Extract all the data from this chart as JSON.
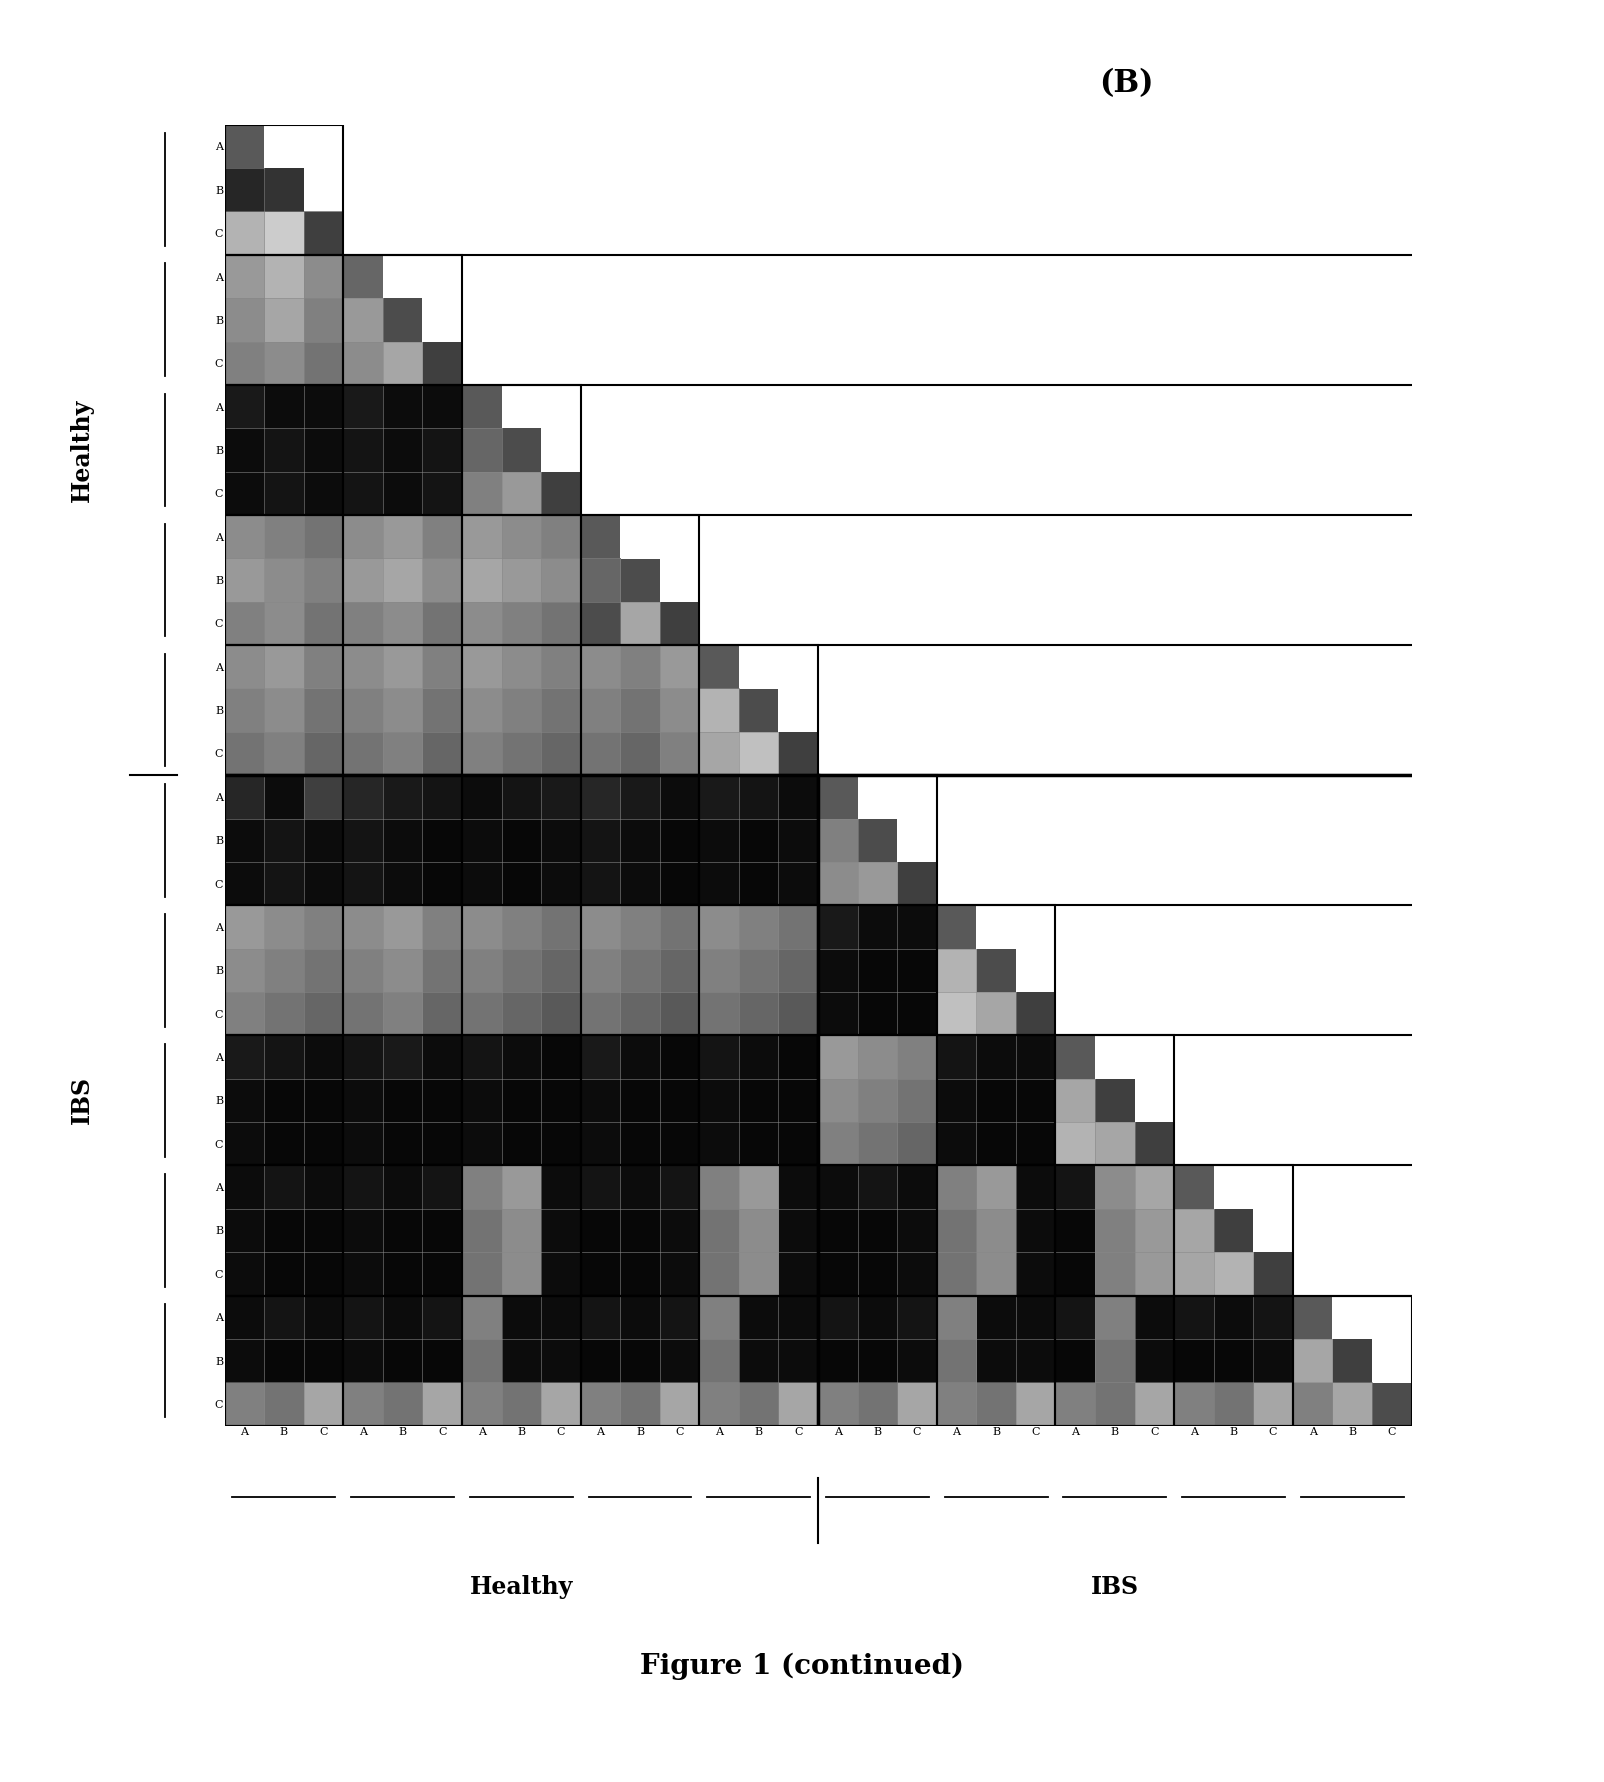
{
  "title": "(B)",
  "figure_caption": "Figure 1 (continued)",
  "n_groups": 10,
  "n_per_group": 3,
  "total": 30,
  "healthy_count": 5,
  "ibs_count": 5,
  "group_labels": [
    "A",
    "B",
    "C",
    "A",
    "B",
    "C",
    "A",
    "B",
    "C",
    "A",
    "B",
    "C",
    "A",
    "B",
    "C",
    "A",
    "B",
    "C",
    "A",
    "B",
    "C",
    "A",
    "B",
    "C",
    "A",
    "B",
    "C",
    "A",
    "B",
    "C"
  ],
  "background_color": "#ffffff",
  "ylabel_healthy": "Healthy",
  "ylabel_ibs": "IBS",
  "xlabel_healthy": "Healthy",
  "xlabel_ibs": "IBS",
  "cell_data": [
    [
      0.35,
      0.9,
      0.7,
      1.0,
      1.0,
      1.0,
      1.0,
      1.0,
      1.0,
      1.0,
      1.0,
      1.0,
      1.0,
      1.0,
      1.0,
      1.0,
      1.0,
      1.0,
      1.0,
      1.0,
      1.0,
      1.0,
      1.0,
      1.0,
      1.0,
      1.0,
      1.0,
      1.0,
      1.0,
      1.0
    ],
    [
      0.15,
      0.2,
      0.55,
      1.0,
      1.0,
      1.0,
      1.0,
      1.0,
      1.0,
      1.0,
      1.0,
      1.0,
      1.0,
      1.0,
      1.0,
      1.0,
      1.0,
      1.0,
      1.0,
      1.0,
      1.0,
      1.0,
      1.0,
      1.0,
      1.0,
      1.0,
      1.0,
      1.0,
      1.0,
      1.0
    ],
    [
      0.7,
      0.8,
      0.25,
      1.0,
      1.0,
      1.0,
      1.0,
      1.0,
      1.0,
      1.0,
      1.0,
      1.0,
      1.0,
      1.0,
      1.0,
      1.0,
      1.0,
      1.0,
      1.0,
      1.0,
      1.0,
      1.0,
      1.0,
      1.0,
      1.0,
      1.0,
      1.0,
      1.0,
      1.0,
      1.0
    ],
    [
      0.6,
      0.7,
      0.55,
      0.4,
      0.75,
      1.0,
      1.0,
      1.0,
      1.0,
      1.0,
      1.0,
      1.0,
      1.0,
      1.0,
      1.0,
      1.0,
      1.0,
      1.0,
      1.0,
      1.0,
      1.0,
      1.0,
      1.0,
      1.0,
      1.0,
      1.0,
      1.0,
      1.0,
      1.0,
      1.0
    ],
    [
      0.55,
      0.65,
      0.5,
      0.6,
      0.3,
      1.0,
      1.0,
      1.0,
      1.0,
      1.0,
      1.0,
      1.0,
      1.0,
      1.0,
      1.0,
      1.0,
      1.0,
      1.0,
      1.0,
      1.0,
      1.0,
      1.0,
      1.0,
      1.0,
      1.0,
      1.0,
      1.0,
      1.0,
      1.0,
      1.0
    ],
    [
      0.5,
      0.55,
      0.45,
      0.55,
      0.65,
      0.25,
      1.0,
      1.0,
      1.0,
      1.0,
      1.0,
      1.0,
      1.0,
      1.0,
      1.0,
      1.0,
      1.0,
      1.0,
      1.0,
      1.0,
      1.0,
      1.0,
      1.0,
      1.0,
      1.0,
      1.0,
      1.0,
      1.0,
      1.0,
      1.0
    ],
    [
      0.1,
      0.05,
      0.05,
      0.1,
      0.05,
      0.05,
      0.35,
      0.85,
      1.0,
      1.0,
      1.0,
      1.0,
      1.0,
      1.0,
      1.0,
      1.0,
      1.0,
      1.0,
      1.0,
      1.0,
      1.0,
      1.0,
      1.0,
      1.0,
      1.0,
      1.0,
      1.0,
      1.0,
      1.0,
      1.0
    ],
    [
      0.05,
      0.08,
      0.05,
      0.08,
      0.05,
      0.08,
      0.4,
      0.3,
      1.0,
      1.0,
      1.0,
      1.0,
      1.0,
      1.0,
      1.0,
      1.0,
      1.0,
      1.0,
      1.0,
      1.0,
      1.0,
      1.0,
      1.0,
      1.0,
      1.0,
      1.0,
      1.0,
      1.0,
      1.0,
      1.0
    ],
    [
      0.05,
      0.08,
      0.05,
      0.08,
      0.05,
      0.08,
      0.5,
      0.6,
      0.25,
      1.0,
      1.0,
      1.0,
      1.0,
      1.0,
      1.0,
      1.0,
      1.0,
      1.0,
      1.0,
      1.0,
      1.0,
      1.0,
      1.0,
      1.0,
      1.0,
      1.0,
      1.0,
      1.0,
      1.0,
      1.0
    ],
    [
      0.55,
      0.5,
      0.45,
      0.55,
      0.6,
      0.5,
      0.6,
      0.55,
      0.5,
      0.35,
      1.0,
      1.0,
      1.0,
      1.0,
      1.0,
      1.0,
      1.0,
      1.0,
      1.0,
      1.0,
      1.0,
      1.0,
      1.0,
      1.0,
      1.0,
      1.0,
      1.0,
      1.0,
      1.0,
      1.0
    ],
    [
      0.6,
      0.55,
      0.5,
      0.6,
      0.65,
      0.55,
      0.65,
      0.6,
      0.55,
      0.4,
      0.3,
      1.0,
      1.0,
      1.0,
      1.0,
      1.0,
      1.0,
      1.0,
      1.0,
      1.0,
      1.0,
      1.0,
      1.0,
      1.0,
      1.0,
      1.0,
      1.0,
      1.0,
      1.0,
      1.0
    ],
    [
      0.5,
      0.55,
      0.45,
      0.5,
      0.55,
      0.45,
      0.55,
      0.5,
      0.45,
      0.3,
      0.65,
      0.25,
      1.0,
      1.0,
      1.0,
      1.0,
      1.0,
      1.0,
      1.0,
      1.0,
      1.0,
      1.0,
      1.0,
      1.0,
      1.0,
      1.0,
      1.0,
      1.0,
      1.0,
      1.0
    ],
    [
      0.55,
      0.6,
      0.5,
      0.55,
      0.6,
      0.5,
      0.6,
      0.55,
      0.5,
      0.55,
      0.5,
      0.6,
      0.35,
      1.0,
      1.0,
      1.0,
      1.0,
      1.0,
      1.0,
      1.0,
      1.0,
      1.0,
      1.0,
      1.0,
      1.0,
      1.0,
      1.0,
      1.0,
      1.0,
      1.0
    ],
    [
      0.5,
      0.55,
      0.45,
      0.5,
      0.55,
      0.45,
      0.55,
      0.5,
      0.45,
      0.5,
      0.45,
      0.55,
      0.7,
      0.3,
      1.0,
      1.0,
      1.0,
      1.0,
      1.0,
      1.0,
      1.0,
      1.0,
      1.0,
      1.0,
      1.0,
      1.0,
      1.0,
      1.0,
      1.0,
      1.0
    ],
    [
      0.45,
      0.5,
      0.4,
      0.45,
      0.5,
      0.4,
      0.5,
      0.45,
      0.4,
      0.45,
      0.4,
      0.5,
      0.65,
      0.75,
      0.25,
      1.0,
      1.0,
      1.0,
      1.0,
      1.0,
      1.0,
      1.0,
      1.0,
      1.0,
      1.0,
      1.0,
      1.0,
      1.0,
      1.0,
      1.0
    ],
    [
      0.15,
      0.05,
      0.25,
      0.15,
      0.1,
      0.08,
      0.05,
      0.08,
      0.1,
      0.15,
      0.1,
      0.05,
      0.1,
      0.08,
      0.05,
      0.35,
      0.8,
      1.0,
      1.0,
      1.0,
      1.0,
      1.0,
      1.0,
      1.0,
      1.0,
      1.0,
      1.0,
      1.0,
      1.0,
      1.0
    ],
    [
      0.05,
      0.08,
      0.05,
      0.08,
      0.05,
      0.03,
      0.05,
      0.03,
      0.05,
      0.08,
      0.05,
      0.03,
      0.05,
      0.03,
      0.05,
      0.5,
      0.3,
      1.0,
      1.0,
      1.0,
      1.0,
      1.0,
      1.0,
      1.0,
      1.0,
      1.0,
      1.0,
      1.0,
      1.0,
      1.0
    ],
    [
      0.05,
      0.08,
      0.05,
      0.08,
      0.05,
      0.03,
      0.05,
      0.03,
      0.05,
      0.08,
      0.05,
      0.03,
      0.05,
      0.03,
      0.05,
      0.55,
      0.6,
      0.25,
      1.0,
      1.0,
      1.0,
      1.0,
      1.0,
      1.0,
      1.0,
      1.0,
      1.0,
      1.0,
      1.0,
      1.0
    ],
    [
      0.6,
      0.55,
      0.5,
      0.55,
      0.6,
      0.5,
      0.55,
      0.5,
      0.45,
      0.55,
      0.5,
      0.45,
      0.55,
      0.5,
      0.45,
      0.1,
      0.05,
      0.05,
      0.35,
      1.0,
      1.0,
      1.0,
      1.0,
      1.0,
      1.0,
      1.0,
      1.0,
      1.0,
      1.0,
      1.0
    ],
    [
      0.55,
      0.5,
      0.45,
      0.5,
      0.55,
      0.45,
      0.5,
      0.45,
      0.4,
      0.5,
      0.45,
      0.4,
      0.5,
      0.45,
      0.4,
      0.05,
      0.03,
      0.03,
      0.7,
      0.3,
      1.0,
      1.0,
      1.0,
      1.0,
      1.0,
      1.0,
      1.0,
      1.0,
      1.0,
      1.0
    ],
    [
      0.5,
      0.45,
      0.4,
      0.45,
      0.5,
      0.4,
      0.45,
      0.4,
      0.35,
      0.45,
      0.4,
      0.35,
      0.45,
      0.4,
      0.35,
      0.05,
      0.03,
      0.03,
      0.75,
      0.65,
      0.25,
      1.0,
      1.0,
      1.0,
      1.0,
      1.0,
      1.0,
      1.0,
      1.0,
      1.0
    ],
    [
      0.1,
      0.08,
      0.05,
      0.08,
      0.1,
      0.05,
      0.08,
      0.05,
      0.03,
      0.1,
      0.05,
      0.03,
      0.08,
      0.05,
      0.03,
      0.6,
      0.55,
      0.5,
      0.08,
      0.05,
      0.05,
      0.35,
      1.0,
      1.0,
      1.0,
      1.0,
      1.0,
      1.0,
      1.0,
      1.0
    ],
    [
      0.05,
      0.03,
      0.03,
      0.05,
      0.03,
      0.03,
      0.05,
      0.03,
      0.03,
      0.05,
      0.03,
      0.03,
      0.05,
      0.03,
      0.03,
      0.55,
      0.5,
      0.45,
      0.05,
      0.03,
      0.03,
      0.65,
      0.25,
      1.0,
      1.0,
      1.0,
      1.0,
      1.0,
      1.0,
      1.0
    ],
    [
      0.05,
      0.03,
      0.03,
      0.05,
      0.03,
      0.03,
      0.05,
      0.03,
      0.03,
      0.05,
      0.03,
      0.03,
      0.05,
      0.03,
      0.03,
      0.5,
      0.45,
      0.4,
      0.05,
      0.03,
      0.03,
      0.7,
      0.65,
      0.25,
      1.0,
      1.0,
      1.0,
      1.0,
      1.0,
      1.0
    ],
    [
      0.05,
      0.08,
      0.05,
      0.08,
      0.05,
      0.08,
      0.5,
      0.6,
      0.05,
      0.08,
      0.05,
      0.08,
      0.5,
      0.6,
      0.05,
      0.05,
      0.08,
      0.05,
      0.5,
      0.6,
      0.05,
      0.08,
      0.55,
      0.65,
      0.35,
      1.0,
      1.0,
      1.0,
      1.0,
      1.0
    ],
    [
      0.05,
      0.03,
      0.03,
      0.05,
      0.03,
      0.03,
      0.45,
      0.55,
      0.05,
      0.03,
      0.03,
      0.05,
      0.45,
      0.55,
      0.05,
      0.03,
      0.03,
      0.05,
      0.45,
      0.55,
      0.05,
      0.03,
      0.5,
      0.6,
      0.65,
      0.25,
      1.0,
      1.0,
      1.0,
      1.0
    ],
    [
      0.05,
      0.03,
      0.03,
      0.05,
      0.03,
      0.03,
      0.45,
      0.55,
      0.05,
      0.03,
      0.03,
      0.05,
      0.45,
      0.55,
      0.05,
      0.03,
      0.03,
      0.05,
      0.45,
      0.55,
      0.05,
      0.03,
      0.5,
      0.6,
      0.65,
      0.7,
      0.25,
      1.0,
      1.0,
      1.0
    ],
    [
      0.05,
      0.08,
      0.05,
      0.08,
      0.05,
      0.08,
      0.5,
      0.05,
      0.05,
      0.08,
      0.05,
      0.08,
      0.5,
      0.05,
      0.05,
      0.08,
      0.05,
      0.08,
      0.5,
      0.05,
      0.05,
      0.08,
      0.5,
      0.05,
      0.08,
      0.05,
      0.08,
      0.35,
      1.0,
      1.0
    ],
    [
      0.05,
      0.03,
      0.03,
      0.05,
      0.03,
      0.03,
      0.45,
      0.05,
      0.05,
      0.03,
      0.03,
      0.05,
      0.45,
      0.05,
      0.05,
      0.03,
      0.03,
      0.05,
      0.45,
      0.05,
      0.05,
      0.03,
      0.45,
      0.05,
      0.03,
      0.03,
      0.05,
      0.65,
      0.25,
      1.0
    ],
    [
      0.5,
      0.45,
      0.65,
      0.5,
      0.45,
      0.65,
      0.5,
      0.45,
      0.65,
      0.5,
      0.45,
      0.65,
      0.5,
      0.45,
      0.65,
      0.5,
      0.45,
      0.65,
      0.5,
      0.45,
      0.65,
      0.5,
      0.45,
      0.65,
      0.5,
      0.45,
      0.65,
      0.5,
      0.65,
      0.3
    ]
  ]
}
